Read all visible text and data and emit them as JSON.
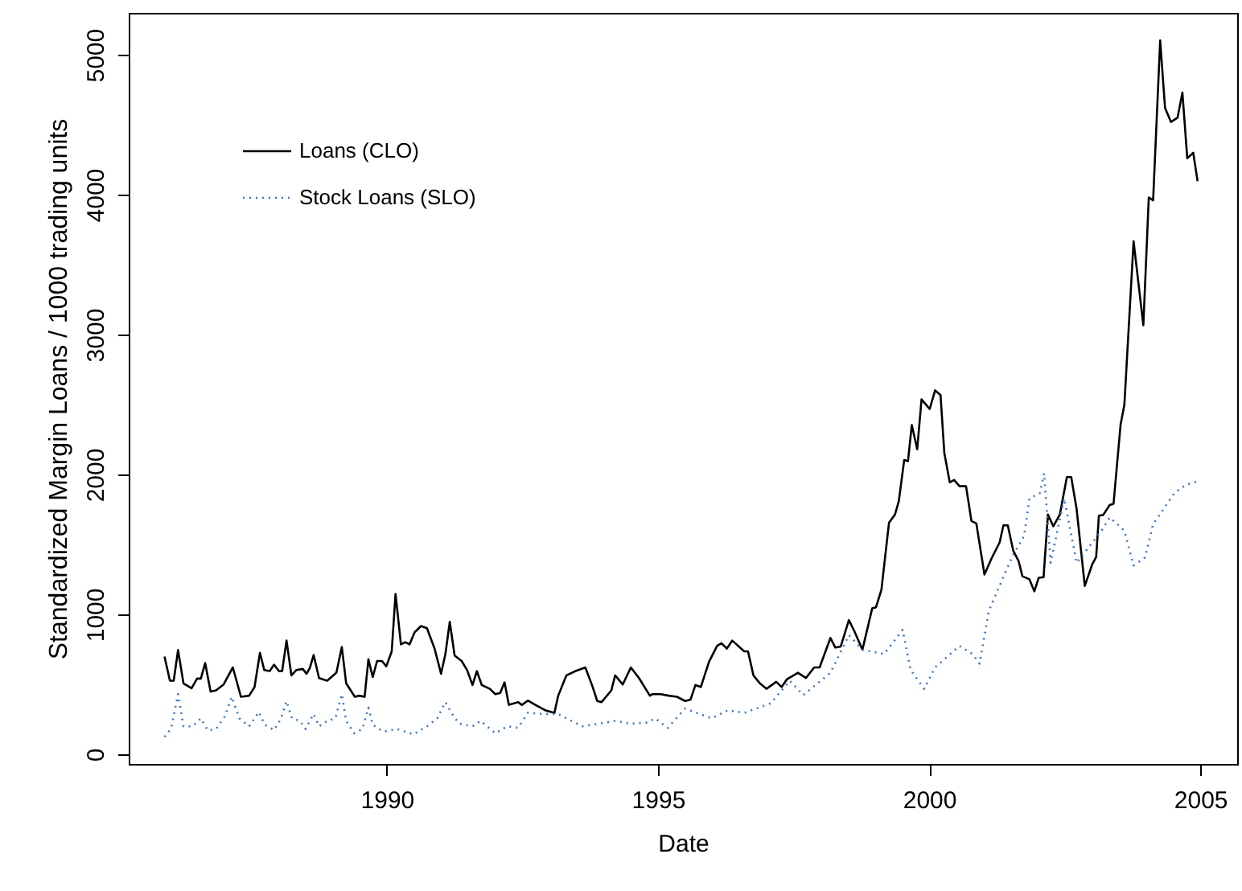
{
  "chart_data": {
    "type": "line",
    "xlabel": "Date",
    "ylabel": "Standardized Margin Loans  /  1000 trading units",
    "xlim": [
      1985.24,
      2005.68
    ],
    "xticks": [
      1990,
      1995,
      2000,
      2005
    ],
    "ylim": [
      -70,
      5300
    ],
    "yticks": [
      0,
      1000,
      2000,
      3000,
      4000,
      5000
    ],
    "legend": "top left",
    "grid": false,
    "series": [
      {
        "name": "Loans (CLO)",
        "color": "#000000",
        "line_style": "solid",
        "x": [
          1985.9,
          1986.0,
          1986.07,
          1986.15,
          1986.25,
          1986.4,
          1986.5,
          1986.57,
          1986.65,
          1986.75,
          1986.85,
          1986.99,
          1987.16,
          1987.31,
          1987.46,
          1987.56,
          1987.66,
          1987.74,
          1987.84,
          1987.92,
          1988.01,
          1988.07,
          1988.15,
          1988.24,
          1988.33,
          1988.45,
          1988.52,
          1988.58,
          1988.65,
          1988.75,
          1988.9,
          1989.07,
          1989.17,
          1989.25,
          1989.41,
          1989.49,
          1989.59,
          1989.66,
          1989.74,
          1989.82,
          1989.91,
          1989.99,
          1990.09,
          1990.16,
          1990.26,
          1990.34,
          1990.42,
          1990.51,
          1990.63,
          1990.74,
          1990.88,
          1991.0,
          1991.08,
          1991.16,
          1991.25,
          1991.38,
          1991.48,
          1991.58,
          1991.66,
          1991.75,
          1991.9,
          1992.0,
          1992.09,
          1992.17,
          1992.25,
          1992.42,
          1992.49,
          1992.6,
          1992.74,
          1992.92,
          1993.09,
          1993.16,
          1993.31,
          1993.48,
          1993.66,
          1993.79,
          1993.88,
          1993.96,
          1994.14,
          1994.21,
          1994.35,
          1994.5,
          1994.65,
          1994.85,
          1994.9,
          1995.05,
          1995.2,
          1995.35,
          1995.5,
          1995.6,
          1995.69,
          1995.79,
          1995.94,
          1996.09,
          1996.17,
          1996.27,
          1996.37,
          1996.59,
          1996.66,
          1996.76,
          1996.88,
          1997.0,
          1997.18,
          1997.28,
          1997.38,
          1997.58,
          1997.73,
          1997.88,
          1997.98,
          1998.18,
          1998.27,
          1998.37,
          1998.52,
          1998.62,
          1998.77,
          1998.95,
          1999.02,
          1999.12,
          1999.26,
          1999.37,
          1999.44,
          1999.54,
          1999.61,
          1999.68,
          1999.78,
          1999.86,
          2000.01,
          2000.11,
          2000.21,
          2000.28,
          2000.38,
          2000.46,
          2000.56,
          2000.68,
          2000.78,
          2000.87,
          2001.02,
          2001.15,
          2001.3,
          2001.37,
          2001.45,
          2001.55,
          2001.65,
          2001.72,
          2001.85,
          2001.94,
          2002.02,
          2002.11,
          2002.19,
          2002.29,
          2002.41,
          2002.54,
          2002.62,
          2002.72,
          2002.87,
          2003.01,
          2003.08,
          2003.13,
          2003.21,
          2003.33,
          2003.4,
          2003.53,
          2003.6,
          2003.77,
          2003.95,
          2004.05,
          2004.13,
          2004.26,
          2004.35,
          2004.46,
          2004.58,
          2004.67,
          2004.76,
          2004.87,
          2004.95
        ],
        "values": [
          698,
          525,
          525,
          744,
          506,
          471,
          540,
          540,
          651,
          448,
          456,
          498,
          620,
          410,
          418,
          479,
          724,
          601,
          594,
          640,
          594,
          594,
          812,
          563,
          601,
          609,
          575,
          617,
          709,
          544,
          525,
          582,
          766,
          506,
          410,
          418,
          410,
          678,
          551,
          666,
          666,
          628,
          735,
          1146,
          785,
          800,
          785,
          870,
          916,
          900,
          755,
          575,
          716,
          946,
          705,
          666,
          601,
          494,
          594,
          494,
          467,
          429,
          437,
          513,
          352,
          372,
          352,
          383,
          352,
          314,
          295,
          418,
          563,
          594,
          620,
          487,
          380,
          372,
          456,
          563,
          498,
          620,
          544,
          418,
          429,
          429,
          418,
          410,
          380,
          390,
          494,
          480,
          659,
          774,
          793,
          755,
          812,
          735,
          735,
          563,
          506,
          467,
          517,
          480,
          536,
          582,
          545,
          620,
          620,
          831,
          762,
          770,
          958,
          880,
          747,
          1042,
          1050,
          1176,
          1655,
          1713,
          1808,
          2103,
          2095,
          2353,
          2180,
          2537,
          2468,
          2601,
          2567,
          2153,
          1943,
          1960,
          1916,
          1916,
          1667,
          1650,
          1284,
          1399,
          1514,
          1636,
          1636,
          1456,
          1380,
          1272,
          1250,
          1164,
          1261,
          1265,
          1713,
          1629,
          1713,
          1981,
          1981,
          1751,
          1203,
          1360,
          1410,
          1705,
          1710,
          1782,
          1790,
          2356,
          2498,
          3667,
          3066,
          3980,
          3960,
          5103,
          4620,
          4520,
          4550,
          4730,
          4260,
          4300,
          4096
        ]
      },
      {
        "name": "Stock Loans (SLO)",
        "color": "#3a75c4",
        "line_style": "dotted",
        "x": [
          1985.9,
          1986.02,
          1986.15,
          1986.25,
          1986.42,
          1986.57,
          1986.7,
          1986.85,
          1987.01,
          1987.14,
          1987.28,
          1987.46,
          1987.64,
          1987.75,
          1987.92,
          1988.05,
          1988.15,
          1988.25,
          1988.4,
          1988.5,
          1988.65,
          1988.75,
          1988.9,
          1989.05,
          1989.17,
          1989.25,
          1989.4,
          1989.55,
          1989.66,
          1989.74,
          1989.94,
          1990.19,
          1990.49,
          1990.74,
          1990.93,
          1991.08,
          1991.18,
          1991.33,
          1991.58,
          1991.73,
          1992.0,
          1992.22,
          1992.42,
          1992.6,
          1992.92,
          1993.16,
          1993.31,
          1993.61,
          1993.91,
          1994.21,
          1994.5,
          1994.8,
          1994.95,
          1995.18,
          1995.5,
          1995.99,
          1996.29,
          1996.59,
          1997.08,
          1997.43,
          1997.68,
          1998.18,
          1998.52,
          1998.77,
          1999.17,
          1999.51,
          1999.66,
          1999.91,
          2000.11,
          2000.56,
          2000.8,
          2000.93,
          2001.1,
          2001.43,
          2001.55,
          2001.75,
          2001.85,
          2002.04,
          2002.12,
          2002.24,
          2002.49,
          2002.72,
          2003.18,
          2003.33,
          2003.6,
          2003.77,
          2003.98,
          2004.13,
          2004.52,
          2004.72,
          2004.95
        ],
        "values": [
          123,
          180,
          429,
          199,
          199,
          256,
          169,
          180,
          268,
          410,
          256,
          199,
          302,
          210,
          172,
          256,
          379,
          256,
          238,
          180,
          287,
          199,
          238,
          256,
          429,
          238,
          149,
          180,
          333,
          210,
          161,
          180,
          141,
          199,
          256,
          372,
          302,
          218,
          199,
          238,
          149,
          199,
          188,
          295,
          287,
          287,
          256,
          199,
          218,
          238,
          218,
          226,
          256,
          188,
          326,
          256,
          314,
          295,
          364,
          525,
          422,
          582,
          851,
          747,
          716,
          889,
          601,
          467,
          620,
          774,
          716,
          647,
          1023,
          1322,
          1425,
          1559,
          1828,
          1866,
          2008,
          1368,
          1828,
          1368,
          1598,
          1693,
          1598,
          1349,
          1406,
          1644,
          1866,
          1923,
          1951
        ]
      }
    ]
  }
}
